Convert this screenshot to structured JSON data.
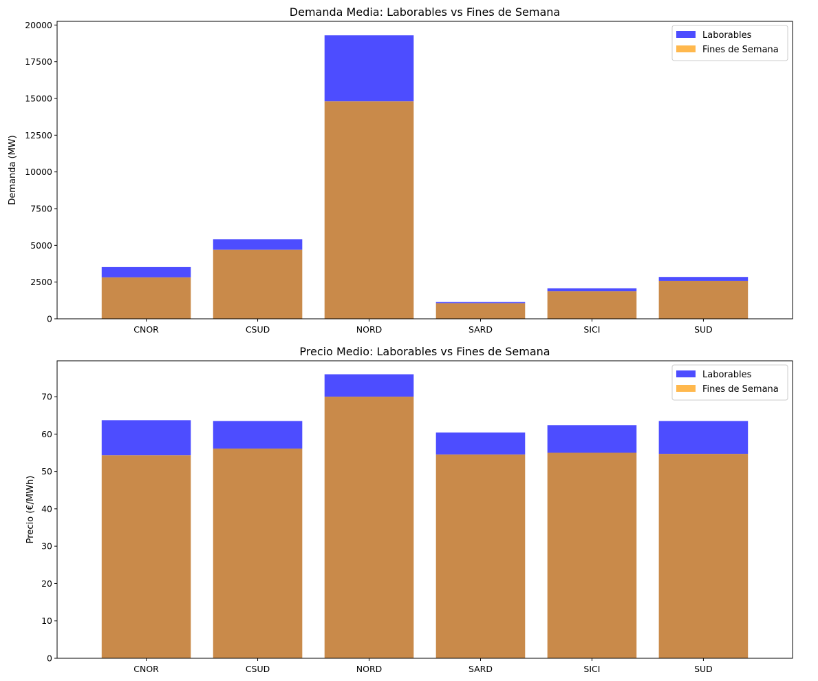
{
  "chart_data": [
    {
      "type": "bar",
      "title": "Demanda Media: Laborables vs Fines de Semana",
      "xlabel": "",
      "ylabel": "Demanda (MW)",
      "categories": [
        "CNOR",
        "CSUD",
        "NORD",
        "SARD",
        "SICI",
        "SUD"
      ],
      "series": [
        {
          "name": "Laborables",
          "color": "#4D4DFF",
          "values": [
            3520,
            5420,
            19300,
            1140,
            2080,
            2850
          ]
        },
        {
          "name": "Fines de Semana",
          "color": "#FFB84D",
          "values": [
            2820,
            4700,
            14800,
            1060,
            1870,
            2580
          ]
        }
      ],
      "overlap_color": "#C98A4A",
      "ylim": [
        0,
        20250
      ],
      "yticks": [
        0,
        2500,
        5000,
        7500,
        10000,
        12500,
        15000,
        17500,
        20000
      ],
      "legend": "top-right",
      "grid": false
    },
    {
      "type": "bar",
      "title": "Precio Medio: Laborables vs Fines de Semana",
      "xlabel": "",
      "ylabel": "Precio (€/MWh)",
      "categories": [
        "CNOR",
        "CSUD",
        "NORD",
        "SARD",
        "SICI",
        "SUD"
      ],
      "series": [
        {
          "name": "Laborables",
          "color": "#4D4DFF",
          "values": [
            63.7,
            63.5,
            76.0,
            60.4,
            62.4,
            63.5
          ]
        },
        {
          "name": "Fines de Semana",
          "color": "#FFB84D",
          "values": [
            54.3,
            56.1,
            70.0,
            54.5,
            55.0,
            54.7
          ]
        }
      ],
      "overlap_color": "#C98A4A",
      "ylim": [
        0,
        79.6
      ],
      "yticks": [
        0,
        10,
        20,
        30,
        40,
        50,
        60,
        70
      ],
      "legend": "top-right",
      "grid": false
    }
  ]
}
